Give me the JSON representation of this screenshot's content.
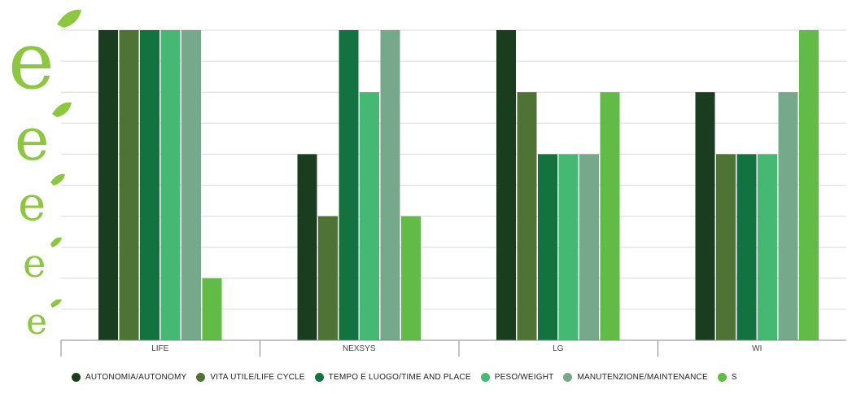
{
  "chart_data": {
    "type": "bar",
    "categories": [
      "LIFE",
      "NEXSYS",
      "LG",
      "WI"
    ],
    "series": [
      {
        "name": "AUTONOMIA/AUTONOMY",
        "color": "#1a3d20",
        "values": [
          5,
          3,
          5,
          4
        ]
      },
      {
        "name": "VITA UTILE/LIFE CYCLE",
        "color": "#4e7335",
        "values": [
          5,
          2,
          4,
          3
        ]
      },
      {
        "name": "TEMPO E LUOGO/TIME AND PLACE",
        "color": "#137340",
        "values": [
          5,
          5,
          3,
          3
        ]
      },
      {
        "name": "PESO/WEIGHT",
        "color": "#45b874",
        "values": [
          5,
          4,
          3,
          3
        ]
      },
      {
        "name": "MANUTENZIONE/MAINTENANCE",
        "color": "#76a88c",
        "values": [
          5,
          5,
          3,
          4
        ]
      },
      {
        "name": "S",
        "color": "#62bb47",
        "values": [
          1,
          2,
          4,
          5
        ]
      }
    ],
    "ylim": [
      0,
      5
    ],
    "grid": true,
    "legend_position": "bottom",
    "logo_icon": "leaf-e-logo-icon"
  }
}
